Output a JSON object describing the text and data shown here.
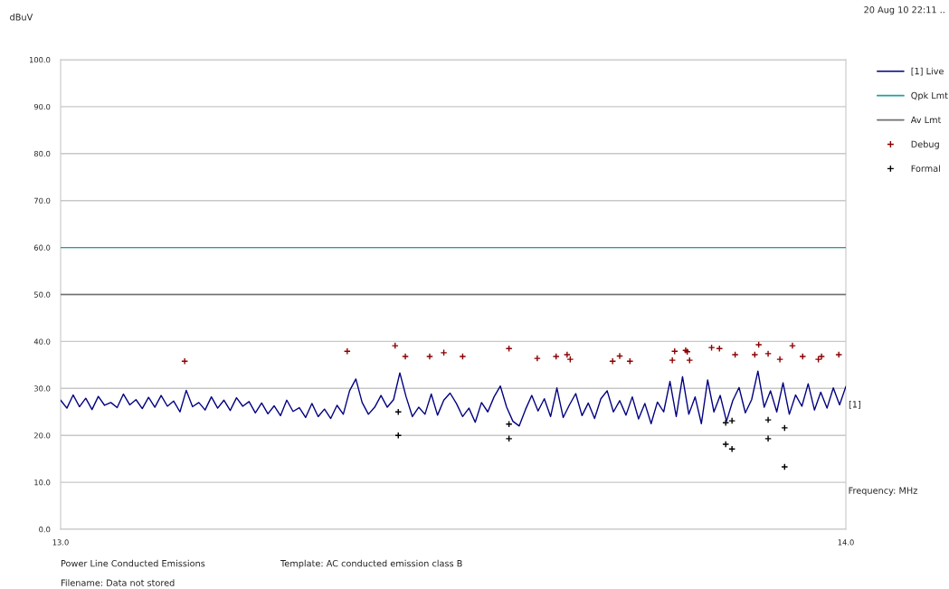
{
  "chart_data": {
    "type": "line",
    "xlabel": "Frequency: MHz",
    "ylabel": "dBuV",
    "xlim": [
      13.0,
      14.0
    ],
    "ylim": [
      0,
      100
    ],
    "xticks": [
      {
        "value": 13.0,
        "label": "13.0"
      },
      {
        "value": 14.0,
        "label": "14.0"
      }
    ],
    "yticks": [
      {
        "value": 0,
        "label": "0.0"
      },
      {
        "value": 10,
        "label": "10.0"
      },
      {
        "value": 20,
        "label": "20.0"
      },
      {
        "value": 30,
        "label": "30.0"
      },
      {
        "value": 40,
        "label": "40.0"
      },
      {
        "value": 50,
        "label": "50.0"
      },
      {
        "value": 60,
        "label": "60.0"
      },
      {
        "value": 70,
        "label": "70.0"
      },
      {
        "value": 80,
        "label": "80.0"
      },
      {
        "value": 90,
        "label": "90.0"
      },
      {
        "value": 100,
        "label": "100.0"
      }
    ],
    "grid": "y",
    "legend": "top right",
    "series": [
      {
        "name": "[1] Live",
        "color": "#000080",
        "x": [
          13.0,
          13.008,
          13.016,
          13.024,
          13.032,
          13.04,
          13.048,
          13.056,
          13.064,
          13.072,
          13.08,
          13.088,
          13.096,
          13.104,
          13.112,
          13.12,
          13.128,
          13.136,
          13.144,
          13.152,
          13.16,
          13.168,
          13.176,
          13.184,
          13.192,
          13.2,
          13.208,
          13.216,
          13.224,
          13.232,
          13.24,
          13.248,
          13.256,
          13.264,
          13.272,
          13.28,
          13.288,
          13.296,
          13.304,
          13.312,
          13.32,
          13.328,
          13.336,
          13.344,
          13.352,
          13.36,
          13.368,
          13.376,
          13.384,
          13.392,
          13.4,
          13.408,
          13.416,
          13.424,
          13.432,
          13.44,
          13.448,
          13.456,
          13.464,
          13.472,
          13.48,
          13.488,
          13.496,
          13.504,
          13.512,
          13.52,
          13.528,
          13.536,
          13.544,
          13.552,
          13.56,
          13.568,
          13.576,
          13.584,
          13.592,
          13.6,
          13.608,
          13.616,
          13.624,
          13.632,
          13.64,
          13.648,
          13.656,
          13.664,
          13.672,
          13.68,
          13.688,
          13.696,
          13.704,
          13.712,
          13.72,
          13.728,
          13.736,
          13.744,
          13.752,
          13.76,
          13.768,
          13.776,
          13.784,
          13.792,
          13.8,
          13.808,
          13.816,
          13.824,
          13.832,
          13.84,
          13.848,
          13.856,
          13.864,
          13.872,
          13.88,
          13.888,
          13.896,
          13.904,
          13.912,
          13.92,
          13.928,
          13.936,
          13.944,
          13.952,
          13.96,
          13.968,
          13.976,
          13.984,
          13.992,
          14.0
        ],
        "values": [
          27.5,
          25.8,
          28.6,
          26.1,
          27.9,
          25.5,
          28.3,
          26.4,
          27.0,
          25.9,
          28.8,
          26.5,
          27.6,
          25.7,
          28.1,
          26.0,
          28.5,
          26.2,
          27.3,
          25.0,
          29.6,
          26.1,
          27.0,
          25.4,
          28.2,
          25.8,
          27.5,
          25.3,
          28.0,
          26.2,
          27.2,
          24.8,
          26.9,
          24.6,
          26.3,
          24.2,
          27.5,
          25.1,
          25.9,
          23.8,
          26.8,
          24.0,
          25.6,
          23.6,
          26.4,
          24.5,
          29.5,
          32.0,
          27.0,
          24.5,
          26.0,
          28.5,
          26.0,
          27.6,
          33.3,
          28.2,
          24.0,
          26.0,
          24.5,
          28.8,
          24.3,
          27.5,
          29.0,
          26.8,
          24.0,
          25.8,
          22.8,
          27.0,
          25.0,
          28.2,
          30.5,
          26.0,
          23.0,
          22.0,
          25.5,
          28.5,
          25.2,
          27.8,
          24.0,
          30.1,
          23.8,
          26.5,
          28.9,
          24.2,
          26.9,
          23.6,
          27.8,
          29.5,
          25.0,
          27.4,
          24.3,
          28.2,
          23.5,
          26.8,
          22.5,
          27.1,
          25.0,
          31.5,
          24.0,
          32.5,
          24.5,
          28.2,
          22.5,
          31.8,
          25.0,
          28.5,
          23.0,
          27.4,
          30.2,
          24.8,
          27.6,
          33.7,
          26.0,
          29.5,
          25.0,
          31.2,
          24.5,
          28.6,
          26.2,
          31.0,
          25.4,
          29.2,
          25.8,
          30.1,
          26.5,
          30.4
        ]
      },
      {
        "name": "Qpk Lmt",
        "type": "line",
        "color": "#20a0a0",
        "x": [
          13.0,
          14.0
        ],
        "values": [
          60,
          60
        ]
      },
      {
        "name": "Av Lmt",
        "type": "line",
        "color": "#707070",
        "x": [
          13.0,
          14.0
        ],
        "values": [
          50,
          50
        ]
      },
      {
        "name": "Debug",
        "type": "scatter",
        "marker": "cross",
        "color": "#8b0000",
        "x": [
          13.158,
          13.365,
          13.426,
          13.439,
          13.47,
          13.488,
          13.512,
          13.571,
          13.607,
          13.631,
          13.645,
          13.649,
          13.703,
          13.712,
          13.725,
          13.779,
          13.782,
          13.796,
          13.798,
          13.801,
          13.829,
          13.839,
          13.859,
          13.884,
          13.889,
          13.901,
          13.916,
          13.932,
          13.945,
          13.965,
          13.969,
          13.991
        ],
        "values": [
          35.8,
          37.9,
          39.1,
          36.8,
          36.8,
          37.6,
          36.8,
          38.5,
          36.4,
          36.8,
          37.2,
          36.2,
          35.8,
          36.9,
          35.8,
          36.0,
          37.9,
          38.1,
          37.8,
          36.0,
          38.7,
          38.5,
          37.2,
          37.2,
          39.3,
          37.4,
          36.2,
          39.1,
          36.8,
          36.2,
          36.8,
          37.2
        ]
      },
      {
        "name": "Formal",
        "type": "scatter",
        "marker": "cross",
        "color": "#000000",
        "x": [
          13.43,
          13.43,
          13.571,
          13.571,
          13.847,
          13.847,
          13.855,
          13.855,
          13.901,
          13.901,
          13.922,
          13.922
        ],
        "values": [
          25.0,
          20.0,
          22.4,
          19.3,
          22.7,
          18.1,
          23.1,
          17.1,
          23.3,
          19.3,
          21.6,
          13.3
        ]
      }
    ],
    "annotations": [
      "[1]",
      "20 Aug 10 22:11 ..",
      "Power Line Conducted Emissions",
      "Template: AC conducted emission class B",
      "Filename: Data not stored"
    ]
  }
}
